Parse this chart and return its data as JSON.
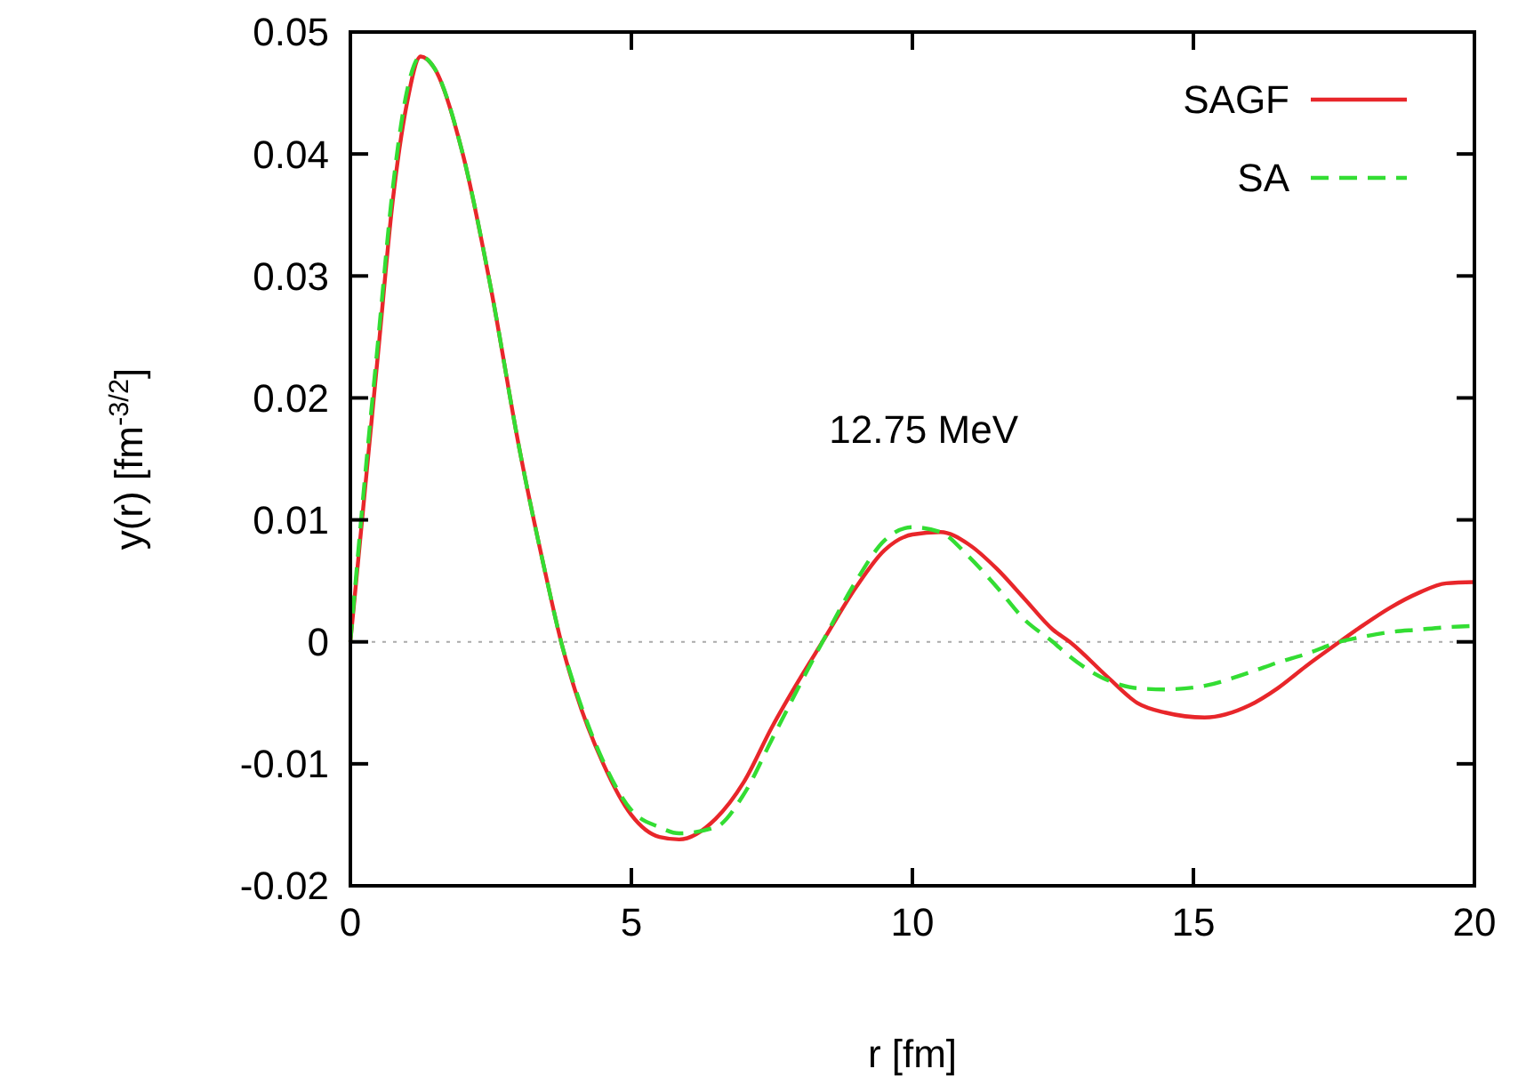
{
  "chart_data": {
    "type": "line",
    "xlabel": "r [fm]",
    "ylabel": "y(r) [fm$^{-3/2}$]",
    "annotations": [
      "12.75 MeV"
    ],
    "x": [
      0,
      0.25,
      0.5,
      0.75,
      1,
      1.25,
      1.5,
      2,
      2.5,
      3,
      3.5,
      3.75,
      4,
      4.5,
      5,
      5.5,
      5.85,
      6.5,
      7,
      7.5,
      8,
      8.4,
      9,
      9.5,
      10,
      10.5,
      11,
      11.5,
      12,
      12.5,
      12.8,
      13.5,
      14,
      14.5,
      15.2,
      16,
      16.5,
      17,
      17.6,
      18,
      18.5,
      19,
      19.5,
      20
    ],
    "series": [
      {
        "name": "SAGF",
        "color": "#e8262a",
        "line_style": "solid",
        "values": [
          0,
          0.012,
          0.024,
          0.036,
          0.044,
          0.048,
          0.047,
          0.04,
          0.029,
          0.016,
          0.005,
          0,
          -0.004,
          -0.01,
          -0.0142,
          -0.016,
          -0.0162,
          -0.0145,
          -0.0115,
          -0.007,
          -0.003,
          0,
          0.0045,
          0.0075,
          0.0088,
          0.009,
          0.008,
          0.006,
          0.0035,
          0.001,
          0,
          -0.003,
          -0.005,
          -0.0058,
          -0.0062,
          -0.0052,
          -0.0038,
          -0.002,
          0,
          0.0013,
          0.0028,
          0.004,
          0.0048,
          0.0049
        ]
      },
      {
        "name": "SA",
        "color": "#33dd33",
        "line_style": "dashed",
        "values": [
          0,
          0.013,
          0.025,
          0.037,
          0.045,
          0.048,
          0.047,
          0.04,
          0.029,
          0.016,
          0.005,
          0,
          -0.0038,
          -0.0098,
          -0.0138,
          -0.0152,
          -0.0157,
          -0.0152,
          -0.0125,
          -0.008,
          -0.0035,
          0,
          0.005,
          0.0083,
          0.0094,
          0.009,
          0.007,
          0.0045,
          0.0018,
          0,
          -0.0012,
          -0.0032,
          -0.0038,
          -0.0039,
          -0.0036,
          -0.0025,
          -0.0017,
          -0.001,
          0,
          0.0004,
          0.0008,
          0.001,
          0.0012,
          0.0013
        ]
      }
    ],
    "xlim": [
      0,
      20
    ],
    "xticks": [
      0,
      5,
      10,
      15,
      20
    ],
    "ylim": [
      -0.02,
      0.05
    ],
    "yticks": [
      -0.02,
      -0.01,
      0,
      0.01,
      0.02,
      0.03,
      0.04,
      0.05
    ],
    "ref_lines": [
      {
        "axis": "y",
        "value": 0,
        "color": "#aaaaaa",
        "line_style": "dotted"
      }
    ],
    "legend": "top right",
    "grid": false
  }
}
